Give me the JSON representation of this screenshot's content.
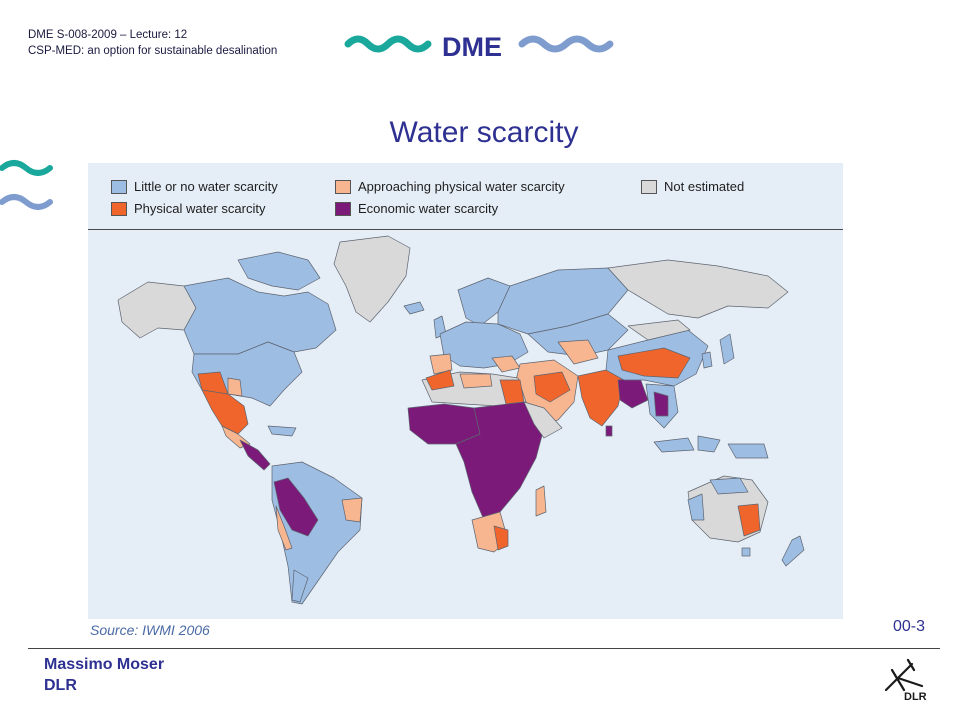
{
  "header": {
    "line1": "DME S-008-2009  – Lecture:  12",
    "line2": "CSP-MED: an option for sustainable desalination",
    "logo_text": "DME"
  },
  "title": "Water scarcity",
  "legend": [
    {
      "label": "Little or no water scarcity",
      "color": "#9dbde3"
    },
    {
      "label": "Approaching physical water scarcity",
      "color": "#f7b690"
    },
    {
      "label": "Not estimated",
      "color": "#d9d9d9"
    },
    {
      "label": "Physical water scarcity",
      "color": "#f0652c"
    },
    {
      "label": "Economic water scarcity",
      "color": "#7b1a79"
    }
  ],
  "source": "Source: IWMI 2006",
  "slide_number": "00-3",
  "footer": {
    "author": "Massimo Moser",
    "org": "DLR",
    "org_logo_text": "DLR"
  },
  "colors": {
    "accent_blue": "#2e3192",
    "wave_teal": "#1aa89c",
    "wave_blue": "#7f9ccf",
    "ocean": "#e5edf6"
  }
}
